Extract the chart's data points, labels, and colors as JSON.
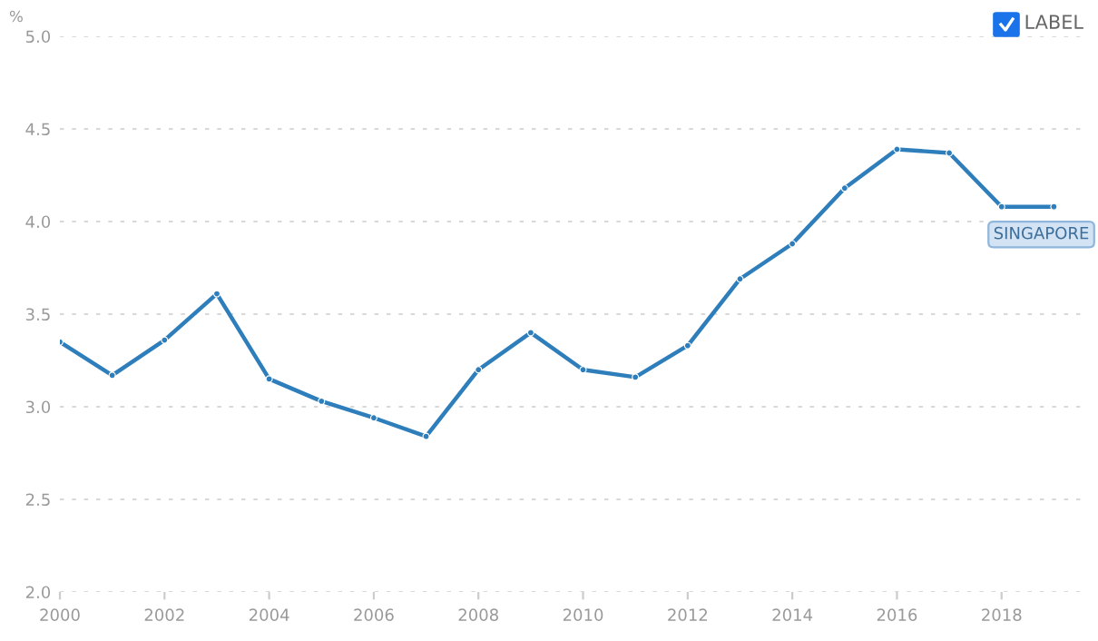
{
  "chart_data": {
    "type": "line",
    "ylabel": "%",
    "x": [
      2000,
      2001,
      2002,
      2003,
      2004,
      2005,
      2006,
      2007,
      2008,
      2009,
      2010,
      2011,
      2012,
      2013,
      2014,
      2015,
      2016,
      2017,
      2018,
      2019
    ],
    "series": [
      {
        "name": "SINGAPORE",
        "color": "#2e7ebc",
        "values": [
          3.35,
          3.17,
          3.36,
          3.61,
          3.15,
          3.03,
          2.94,
          2.84,
          3.2,
          3.4,
          3.2,
          3.16,
          3.33,
          3.69,
          3.88,
          4.18,
          4.39,
          4.37,
          4.08,
          4.08
        ]
      }
    ],
    "xlim": [
      2000,
      2019.6
    ],
    "xticks": [
      2000,
      2002,
      2004,
      2006,
      2008,
      2010,
      2012,
      2014,
      2016,
      2018
    ],
    "ylim": [
      2.0,
      5.0
    ],
    "yticks": [
      {
        "value": 2.0,
        "label": "2.0"
      },
      {
        "value": 2.5,
        "label": "2.5"
      },
      {
        "value": 3.0,
        "label": "3.0"
      },
      {
        "value": 3.5,
        "label": "3.5"
      },
      {
        "value": 4.0,
        "label": "4.0"
      },
      {
        "value": 4.5,
        "label": "4.5"
      },
      {
        "value": 5.0,
        "label": "5.0"
      }
    ],
    "grid": "y",
    "marker": "circle",
    "line_style": "solid",
    "annotations": [
      "LABEL"
    ]
  }
}
